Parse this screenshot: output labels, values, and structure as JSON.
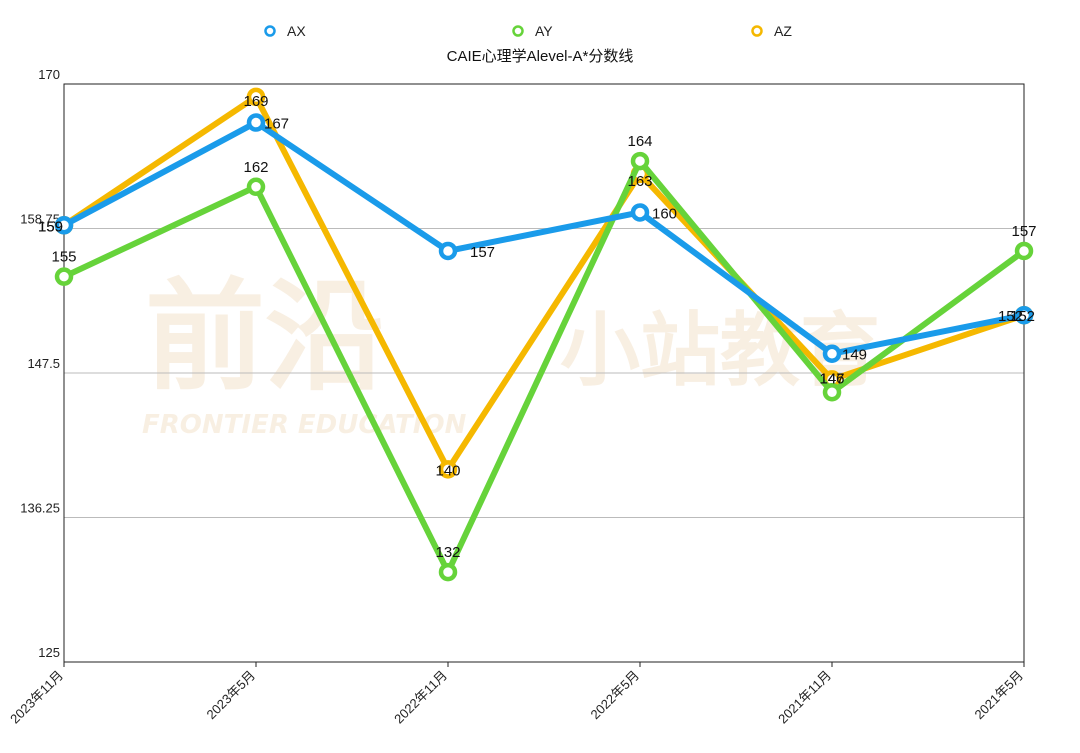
{
  "chart_data": {
    "type": "line",
    "title": "CAIE心理学Alevel-A*分数线",
    "categories": [
      "2023年11月",
      "2023年5月",
      "2022年11月",
      "2022年5月",
      "2021年11月",
      "2021年5月"
    ],
    "ylim": [
      125,
      170
    ],
    "yticks": [
      125,
      136.25,
      147.5,
      158.75,
      170
    ],
    "ytick_labels": [
      "125",
      "136.25",
      "147.5",
      "158.75",
      "170"
    ],
    "grid": true,
    "legend_position": "top",
    "series": [
      {
        "name": "AX",
        "color": "#1a9bea",
        "values": [
          159,
          167,
          157,
          160,
          149,
          152
        ]
      },
      {
        "name": "AY",
        "color": "#66d33a",
        "values": [
          155,
          162,
          132,
          164,
          146,
          157
        ]
      },
      {
        "name": "AZ",
        "color": "#f5b800",
        "values": [
          159,
          169,
          140,
          163,
          147,
          152
        ]
      }
    ]
  },
  "watermark": {
    "left_logo_text": "前沿",
    "left_subtext": "FRONTIER EDUCATION",
    "right_logo_text": "小站教育"
  }
}
